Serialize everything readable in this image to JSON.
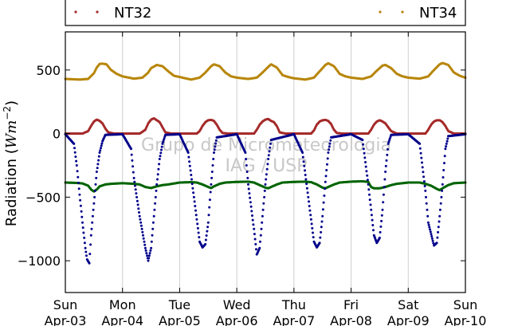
{
  "chart_data": {
    "type": "scatter",
    "title": "",
    "xlabel": "",
    "ylabel_prefix": "Radiation (",
    "ylabel_unit_main": "Wm",
    "ylabel_unit_exp": "−2",
    "ylabel_suffix": ")",
    "ylim": [
      -1250,
      800
    ],
    "yticks": [
      {
        "value": 500,
        "label": "500"
      },
      {
        "value": 0,
        "label": "0"
      },
      {
        "value": -500,
        "label": "−500"
      },
      {
        "value": -1000,
        "label": "−1000"
      }
    ],
    "xlim": [
      0,
      7
    ],
    "xticks": [
      {
        "value": 0,
        "day": "Sun",
        "date": "Apr-03"
      },
      {
        "value": 1,
        "day": "Mon",
        "date": "Apr-04"
      },
      {
        "value": 2,
        "day": "Tue",
        "date": "Apr-05"
      },
      {
        "value": 3,
        "day": "Wed",
        "date": "Apr-06"
      },
      {
        "value": 4,
        "day": "Thu",
        "date": "Apr-07"
      },
      {
        "value": 5,
        "day": "Fri",
        "date": "Apr-08"
      },
      {
        "value": 6,
        "day": "Sat",
        "date": "Apr-09"
      },
      {
        "value": 7,
        "day": "Sun",
        "date": "Apr-10"
      }
    ],
    "grid": "vertical",
    "legend": {
      "placement": "top",
      "entries": [
        "NT32",
        "NT34"
      ]
    },
    "watermark": [
      "Grupo de Micrometeorologia",
      "IAG / USP"
    ],
    "series": [
      {
        "name": "NT34",
        "color": "#b8860b",
        "points": [
          [
            0.0,
            430
          ],
          [
            0.25,
            425
          ],
          [
            0.4,
            430
          ],
          [
            0.5,
            475
          ],
          [
            0.55,
            520
          ],
          [
            0.6,
            548
          ],
          [
            0.65,
            550
          ],
          [
            0.72,
            545
          ],
          [
            0.8,
            500
          ],
          [
            0.9,
            470
          ],
          [
            1.0,
            450
          ],
          [
            1.2,
            432
          ],
          [
            1.35,
            440
          ],
          [
            1.45,
            480
          ],
          [
            1.5,
            515
          ],
          [
            1.6,
            540
          ],
          [
            1.7,
            530
          ],
          [
            1.8,
            490
          ],
          [
            1.9,
            455
          ],
          [
            2.0,
            445
          ],
          [
            2.2,
            425
          ],
          [
            2.35,
            440
          ],
          [
            2.45,
            480
          ],
          [
            2.55,
            530
          ],
          [
            2.6,
            545
          ],
          [
            2.7,
            530
          ],
          [
            2.8,
            480
          ],
          [
            2.9,
            450
          ],
          [
            3.0,
            440
          ],
          [
            3.2,
            430
          ],
          [
            3.35,
            440
          ],
          [
            3.45,
            480
          ],
          [
            3.55,
            525
          ],
          [
            3.6,
            545
          ],
          [
            3.7,
            520
          ],
          [
            3.8,
            460
          ],
          [
            3.9,
            445
          ],
          [
            4.0,
            435
          ],
          [
            4.2,
            425
          ],
          [
            4.35,
            440
          ],
          [
            4.45,
            490
          ],
          [
            4.55,
            540
          ],
          [
            4.6,
            553
          ],
          [
            4.7,
            530
          ],
          [
            4.8,
            470
          ],
          [
            4.9,
            450
          ],
          [
            5.0,
            440
          ],
          [
            5.2,
            430
          ],
          [
            5.35,
            450
          ],
          [
            5.45,
            495
          ],
          [
            5.55,
            535
          ],
          [
            5.6,
            540
          ],
          [
            5.7,
            515
          ],
          [
            5.8,
            470
          ],
          [
            5.9,
            450
          ],
          [
            6.0,
            440
          ],
          [
            6.2,
            432
          ],
          [
            6.35,
            450
          ],
          [
            6.45,
            500
          ],
          [
            6.55,
            545
          ],
          [
            6.6,
            555
          ],
          [
            6.7,
            540
          ],
          [
            6.8,
            480
          ],
          [
            6.9,
            455
          ],
          [
            7.0,
            440
          ]
        ]
      },
      {
        "name": "NT32",
        "color": "#a52a2a",
        "points": [
          [
            0.0,
            0
          ],
          [
            0.3,
            0
          ],
          [
            0.4,
            20
          ],
          [
            0.45,
            60
          ],
          [
            0.5,
            95
          ],
          [
            0.55,
            110
          ],
          [
            0.6,
            100
          ],
          [
            0.65,
            80
          ],
          [
            0.7,
            40
          ],
          [
            0.75,
            10
          ],
          [
            0.85,
            0
          ],
          [
            1.3,
            0
          ],
          [
            1.4,
            30
          ],
          [
            1.45,
            80
          ],
          [
            1.5,
            110
          ],
          [
            1.55,
            120
          ],
          [
            1.6,
            105
          ],
          [
            1.65,
            90
          ],
          [
            1.7,
            50
          ],
          [
            1.75,
            10
          ],
          [
            1.85,
            0
          ],
          [
            2.3,
            0
          ],
          [
            2.35,
            20
          ],
          [
            2.4,
            60
          ],
          [
            2.45,
            90
          ],
          [
            2.5,
            105
          ],
          [
            2.55,
            108
          ],
          [
            2.6,
            100
          ],
          [
            2.65,
            70
          ],
          [
            2.7,
            30
          ],
          [
            2.75,
            5
          ],
          [
            2.85,
            0
          ],
          [
            3.3,
            0
          ],
          [
            3.35,
            30
          ],
          [
            3.4,
            70
          ],
          [
            3.45,
            95
          ],
          [
            3.5,
            110
          ],
          [
            3.55,
            115
          ],
          [
            3.6,
            100
          ],
          [
            3.65,
            90
          ],
          [
            3.7,
            60
          ],
          [
            3.75,
            10
          ],
          [
            3.85,
            0
          ],
          [
            4.3,
            0
          ],
          [
            4.35,
            25
          ],
          [
            4.4,
            70
          ],
          [
            4.45,
            95
          ],
          [
            4.5,
            105
          ],
          [
            4.55,
            108
          ],
          [
            4.6,
            100
          ],
          [
            4.65,
            75
          ],
          [
            4.7,
            30
          ],
          [
            4.75,
            5
          ],
          [
            4.85,
            0
          ],
          [
            5.3,
            0
          ],
          [
            5.35,
            30
          ],
          [
            5.4,
            70
          ],
          [
            5.45,
            95
          ],
          [
            5.5,
            105
          ],
          [
            5.55,
            95
          ],
          [
            5.6,
            80
          ],
          [
            5.65,
            50
          ],
          [
            5.7,
            20
          ],
          [
            5.8,
            0
          ],
          [
            6.3,
            0
          ],
          [
            6.35,
            30
          ],
          [
            6.4,
            70
          ],
          [
            6.45,
            95
          ],
          [
            6.5,
            105
          ],
          [
            6.55,
            105
          ],
          [
            6.6,
            90
          ],
          [
            6.65,
            60
          ],
          [
            6.7,
            20
          ],
          [
            6.8,
            0
          ],
          [
            7.0,
            0
          ]
        ]
      },
      {
        "name": "",
        "color": "#006400",
        "points": [
          [
            0.0,
            -385
          ],
          [
            0.2,
            -388
          ],
          [
            0.3,
            -392
          ],
          [
            0.4,
            -410
          ],
          [
            0.45,
            -440
          ],
          [
            0.5,
            -455
          ],
          [
            0.55,
            -440
          ],
          [
            0.6,
            -415
          ],
          [
            0.7,
            -400
          ],
          [
            0.8,
            -395
          ],
          [
            1.0,
            -390
          ],
          [
            1.2,
            -395
          ],
          [
            1.3,
            -400
          ],
          [
            1.4,
            -420
          ],
          [
            1.5,
            -428
          ],
          [
            1.6,
            -415
          ],
          [
            1.7,
            -405
          ],
          [
            1.8,
            -400
          ],
          [
            2.0,
            -385
          ],
          [
            2.2,
            -382
          ],
          [
            2.3,
            -385
          ],
          [
            2.4,
            -400
          ],
          [
            2.5,
            -420
          ],
          [
            2.55,
            -428
          ],
          [
            2.6,
            -415
          ],
          [
            2.7,
            -395
          ],
          [
            2.8,
            -385
          ],
          [
            3.0,
            -380
          ],
          [
            3.2,
            -378
          ],
          [
            3.3,
            -385
          ],
          [
            3.4,
            -405
          ],
          [
            3.5,
            -425
          ],
          [
            3.55,
            -430
          ],
          [
            3.6,
            -420
          ],
          [
            3.7,
            -400
          ],
          [
            3.8,
            -385
          ],
          [
            4.0,
            -380
          ],
          [
            4.2,
            -378
          ],
          [
            4.3,
            -382
          ],
          [
            4.4,
            -400
          ],
          [
            4.5,
            -425
          ],
          [
            4.55,
            -430
          ],
          [
            4.6,
            -420
          ],
          [
            4.7,
            -400
          ],
          [
            4.8,
            -385
          ],
          [
            5.0,
            -378
          ],
          [
            5.2,
            -375
          ],
          [
            5.3,
            -380
          ],
          [
            5.35,
            -420
          ],
          [
            5.4,
            -430
          ],
          [
            5.5,
            -430
          ],
          [
            5.6,
            -420
          ],
          [
            5.7,
            -405
          ],
          [
            5.8,
            -395
          ],
          [
            6.0,
            -385
          ],
          [
            6.2,
            -385
          ],
          [
            6.3,
            -395
          ],
          [
            6.4,
            -410
          ],
          [
            6.5,
            -435
          ],
          [
            6.55,
            -445
          ],
          [
            6.6,
            -430
          ],
          [
            6.7,
            -405
          ],
          [
            6.8,
            -390
          ],
          [
            7.0,
            -385
          ]
        ]
      },
      {
        "name": "",
        "color": "#00008b",
        "points": [
          [
            0.0,
            -5
          ],
          [
            0.15,
            -80
          ],
          [
            0.2,
            -250
          ],
          [
            0.25,
            -480
          ],
          [
            0.3,
            -700
          ],
          [
            0.35,
            -900
          ],
          [
            0.38,
            -990
          ],
          [
            0.42,
            -1020
          ],
          [
            0.45,
            -800
          ],
          [
            0.5,
            -550
          ],
          [
            0.55,
            -300
          ],
          [
            0.6,
            -150
          ],
          [
            0.65,
            -60
          ],
          [
            0.7,
            -10
          ],
          [
            1.0,
            -5
          ],
          [
            1.15,
            -120
          ],
          [
            1.2,
            -350
          ],
          [
            1.3,
            -650
          ],
          [
            1.4,
            -900
          ],
          [
            1.45,
            -1000
          ],
          [
            1.5,
            -900
          ],
          [
            1.55,
            -650
          ],
          [
            1.6,
            -400
          ],
          [
            1.65,
            -200
          ],
          [
            1.7,
            -80
          ],
          [
            1.75,
            -10
          ],
          [
            2.0,
            -5
          ],
          [
            2.15,
            -150
          ],
          [
            2.25,
            -500
          ],
          [
            2.35,
            -850
          ],
          [
            2.4,
            -895
          ],
          [
            2.45,
            -870
          ],
          [
            2.5,
            -700
          ],
          [
            2.55,
            -400
          ],
          [
            2.6,
            -150
          ],
          [
            2.65,
            -30
          ],
          [
            3.0,
            -5
          ],
          [
            3.15,
            -150
          ],
          [
            3.2,
            -400
          ],
          [
            3.3,
            -750
          ],
          [
            3.35,
            -950
          ],
          [
            3.4,
            -900
          ],
          [
            3.45,
            -650
          ],
          [
            3.5,
            -400
          ],
          [
            3.55,
            -200
          ],
          [
            3.6,
            -50
          ],
          [
            4.0,
            -5
          ],
          [
            4.15,
            -150
          ],
          [
            4.25,
            -500
          ],
          [
            4.35,
            -850
          ],
          [
            4.4,
            -895
          ],
          [
            4.45,
            -860
          ],
          [
            4.5,
            -650
          ],
          [
            4.55,
            -380
          ],
          [
            4.6,
            -150
          ],
          [
            4.65,
            -30
          ],
          [
            5.0,
            -5
          ],
          [
            5.2,
            -50
          ],
          [
            5.3,
            -400
          ],
          [
            5.4,
            -800
          ],
          [
            5.45,
            -860
          ],
          [
            5.5,
            -820
          ],
          [
            5.55,
            -600
          ],
          [
            5.6,
            -300
          ],
          [
            5.65,
            -80
          ],
          [
            5.7,
            -10
          ],
          [
            6.0,
            -5
          ],
          [
            6.2,
            -80
          ],
          [
            6.3,
            -450
          ],
          [
            6.35,
            -700
          ],
          [
            6.45,
            -880
          ],
          [
            6.5,
            -860
          ],
          [
            6.55,
            -650
          ],
          [
            6.6,
            -400
          ],
          [
            6.65,
            -120
          ],
          [
            6.7,
            -20
          ],
          [
            7.0,
            -5
          ]
        ]
      }
    ]
  }
}
